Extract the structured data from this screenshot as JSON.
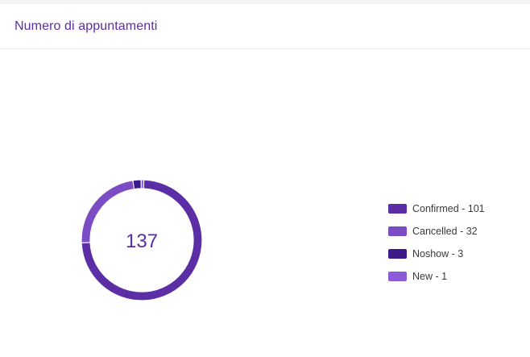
{
  "header": {
    "title": "Numero di appuntamenti"
  },
  "chart_data": {
    "type": "pie",
    "variant": "donut",
    "center_label": "137",
    "total": 137,
    "categories": [
      "Confirmed",
      "Cancelled",
      "Noshow",
      "New"
    ],
    "values": [
      101,
      32,
      3,
      1
    ],
    "colors": [
      "#5b2ea6",
      "#7b4cc4",
      "#3d1a8a",
      "#8d5ad8"
    ],
    "legend": [
      {
        "label": "Confirmed - 101",
        "color": "#5b2ea6"
      },
      {
        "label": "Cancelled - 32",
        "color": "#7b4cc4"
      },
      {
        "label": "Noshow - 3",
        "color": "#3d1a8a"
      },
      {
        "label": "New - 1",
        "color": "#8d5ad8"
      }
    ],
    "legend_position": "right"
  }
}
